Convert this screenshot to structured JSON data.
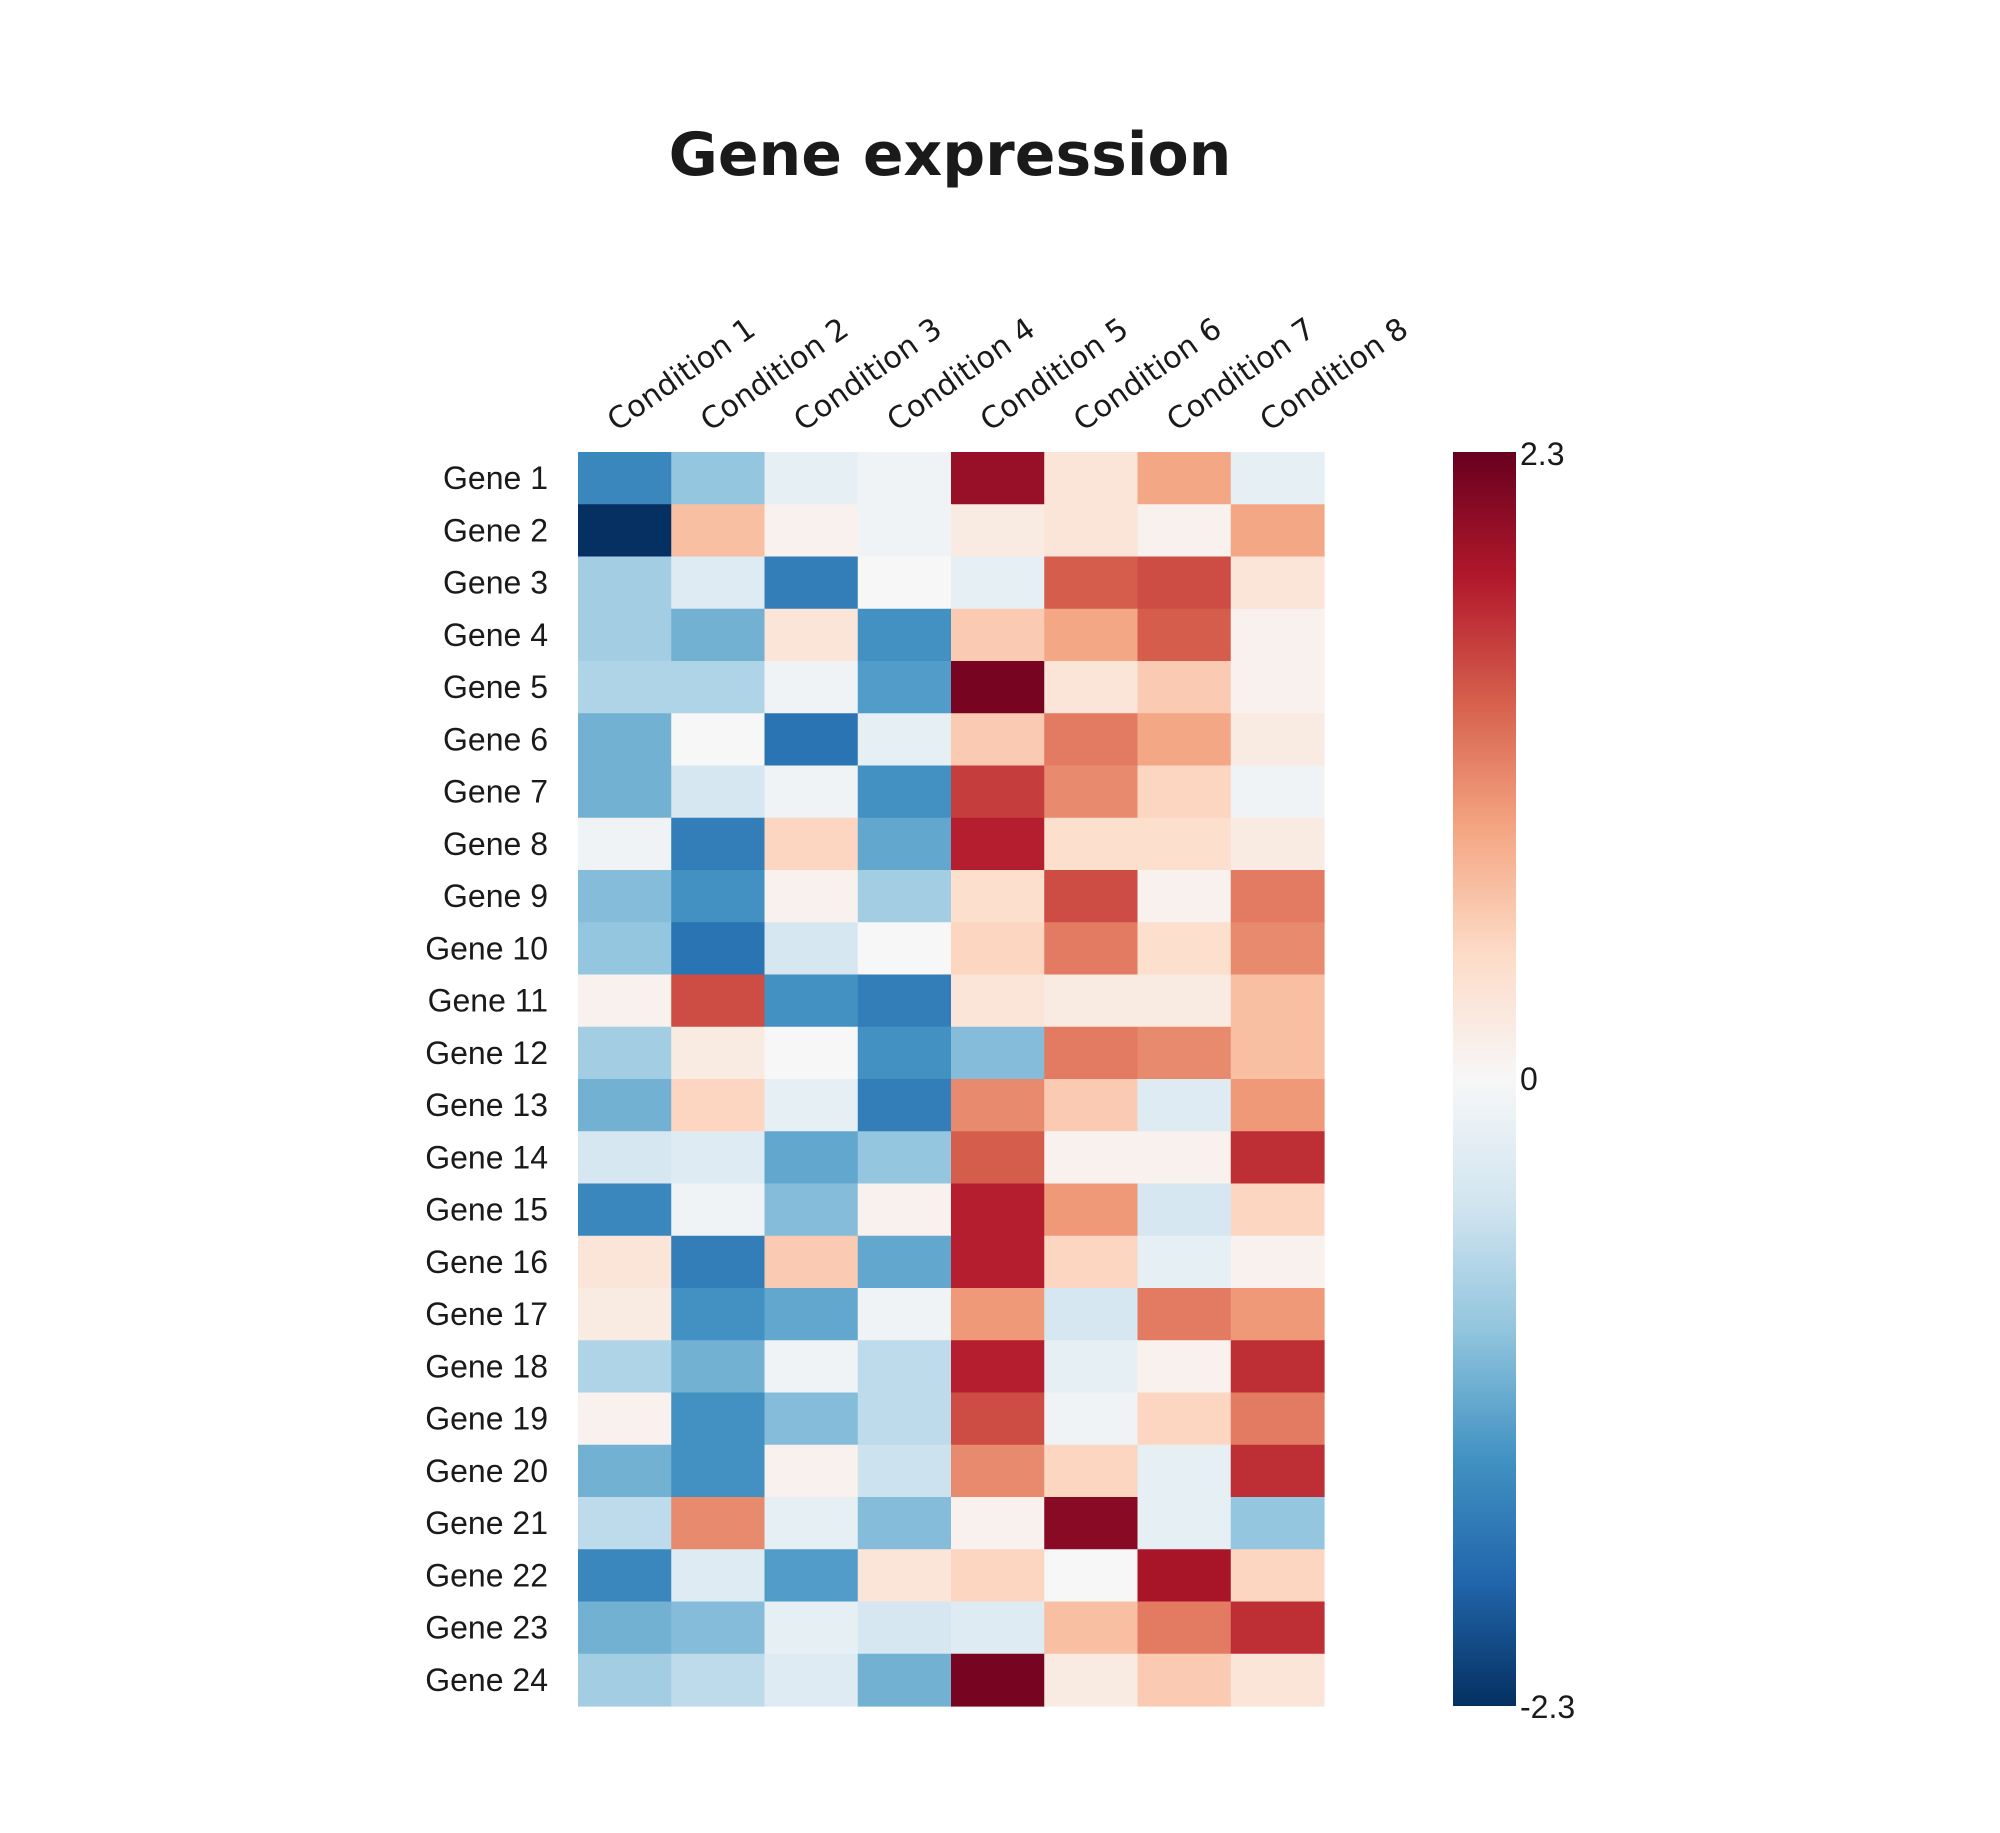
{
  "chart_data": {
    "type": "heatmap",
    "title": "Gene expression",
    "columns": [
      "Condition 1",
      "Condition 2",
      "Condition 3",
      "Condition 4",
      "Condition 5",
      "Condition 6",
      "Condition 7",
      "Condition 8"
    ],
    "rows": [
      "Gene 1",
      "Gene 2",
      "Gene 3",
      "Gene 4",
      "Gene 5",
      "Gene 6",
      "Gene 7",
      "Gene 8",
      "Gene 9",
      "Gene 10",
      "Gene 11",
      "Gene 12",
      "Gene 13",
      "Gene 14",
      "Gene 15",
      "Gene 16",
      "Gene 17",
      "Gene 18",
      "Gene 19",
      "Gene 20",
      "Gene 21",
      "Gene 22",
      "Gene 23",
      "Gene 24"
    ],
    "values": [
      [
        -1.5,
        -0.9,
        -0.2,
        -0.1,
        2.0,
        0.3,
        0.9,
        -0.2
      ],
      [
        -2.3,
        0.7,
        0.1,
        -0.1,
        0.2,
        0.3,
        0.1,
        0.9
      ],
      [
        -0.8,
        -0.3,
        -1.6,
        0.0,
        -0.2,
        1.4,
        1.5,
        0.3
      ],
      [
        -0.8,
        -1.1,
        0.3,
        -1.4,
        0.6,
        0.9,
        1.4,
        0.1
      ],
      [
        -0.7,
        -0.7,
        -0.1,
        -1.3,
        2.2,
        0.3,
        0.6,
        0.1
      ],
      [
        -1.1,
        -0.0,
        -1.7,
        -0.2,
        0.6,
        1.2,
        0.9,
        0.2
      ],
      [
        -1.1,
        -0.4,
        -0.1,
        -1.4,
        1.6,
        1.1,
        0.5,
        -0.1
      ],
      [
        -0.1,
        -1.6,
        0.5,
        -1.2,
        1.8,
        0.4,
        0.4,
        0.2
      ],
      [
        -1.0,
        -1.4,
        0.1,
        -0.8,
        0.4,
        1.5,
        0.1,
        1.2
      ],
      [
        -0.9,
        -1.7,
        -0.4,
        -0.0,
        0.5,
        1.2,
        0.4,
        1.1
      ],
      [
        0.1,
        1.5,
        -1.4,
        -1.6,
        0.3,
        0.2,
        0.2,
        0.7
      ],
      [
        -0.8,
        0.2,
        -0.0,
        -1.4,
        -1.0,
        1.2,
        1.1,
        0.7
      ],
      [
        -1.1,
        0.5,
        -0.2,
        -1.6,
        1.1,
        0.6,
        -0.3,
        1.0
      ],
      [
        -0.4,
        -0.3,
        -1.2,
        -0.9,
        1.4,
        0.1,
        0.1,
        1.7
      ],
      [
        -1.5,
        -0.1,
        -1.0,
        0.1,
        1.8,
        1.0,
        -0.4,
        0.5
      ],
      [
        0.3,
        -1.6,
        0.6,
        -1.2,
        1.8,
        0.5,
        -0.2,
        0.1
      ],
      [
        0.2,
        -1.4,
        -1.2,
        -0.1,
        1.0,
        -0.4,
        1.2,
        1.0
      ],
      [
        -0.7,
        -1.1,
        -0.1,
        -0.6,
        1.8,
        -0.2,
        0.1,
        1.7
      ],
      [
        0.1,
        -1.4,
        -1.0,
        -0.6,
        1.5,
        -0.1,
        0.5,
        1.2
      ],
      [
        -1.1,
        -1.4,
        0.1,
        -0.5,
        1.1,
        0.5,
        -0.2,
        1.7
      ],
      [
        -0.6,
        1.1,
        -0.2,
        -1.0,
        0.1,
        2.1,
        -0.2,
        -0.9
      ],
      [
        -1.5,
        -0.3,
        -1.3,
        0.3,
        0.5,
        0.0,
        1.9,
        0.5
      ],
      [
        -1.1,
        -1.0,
        -0.2,
        -0.4,
        -0.3,
        0.7,
        1.2,
        1.7
      ],
      [
        -0.8,
        -0.6,
        -0.3,
        -1.1,
        2.2,
        0.2,
        0.6,
        0.3
      ]
    ],
    "colorscale": "RdBu_r",
    "colorbar": {
      "range": [
        -2.3,
        2.3
      ],
      "tick_labels": [
        "2.3",
        "0",
        "-2.3"
      ],
      "tick_values": [
        2.3,
        0,
        -2.3
      ]
    }
  }
}
